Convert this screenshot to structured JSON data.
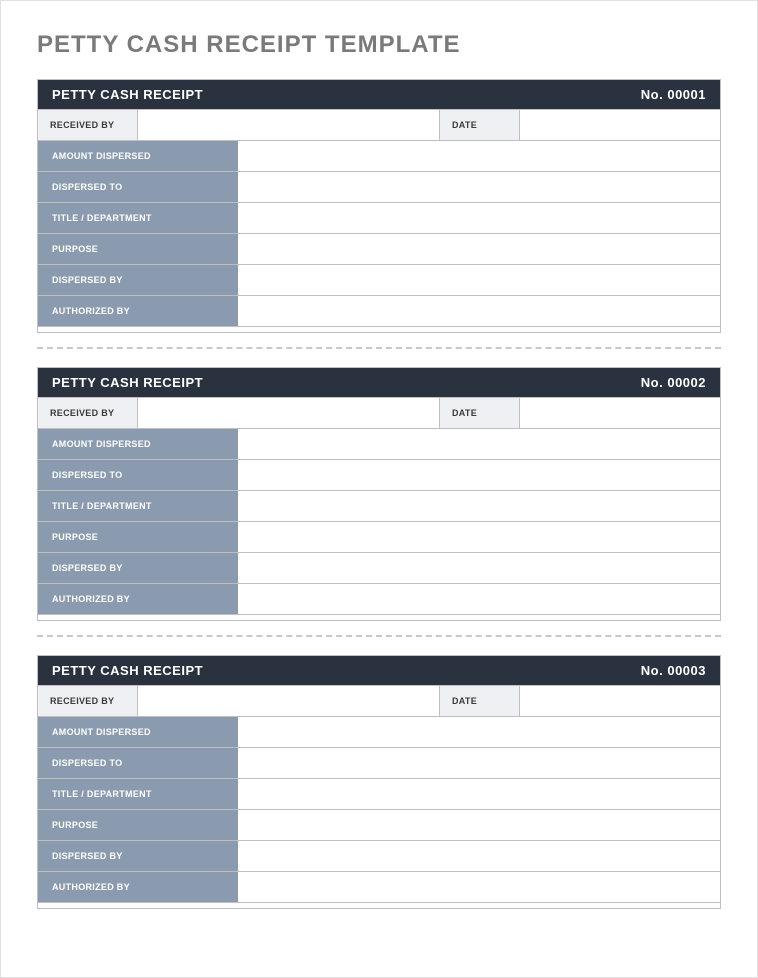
{
  "page": {
    "title": "PETTY CASH RECEIPT TEMPLATE"
  },
  "colors": {
    "header_bg": "#2a3240",
    "header_text": "#ffffff",
    "field_label_bg": "#8a9bb0",
    "field_label_text": "#ffffff",
    "light_label_bg": "#eef0f4",
    "border": "#bfbfbf",
    "page_title": "#7a7a7a",
    "separator": "#c8c8c8"
  },
  "labels": {
    "header_title": "PETTY CASH RECEIPT",
    "received_by": "RECEIVED BY",
    "date": "DATE",
    "amount_dispersed": "AMOUNT DISPERSED",
    "dispersed_to": "DISPERSED TO",
    "title_department": "TITLE / DEPARTMENT",
    "purpose": "PURPOSE",
    "dispersed_by": "DISPERSED BY",
    "authorized_by": "AUTHORIZED BY"
  },
  "receipts": [
    {
      "number": "No. 00001",
      "received_by": "",
      "date": "",
      "amount_dispersed": "",
      "dispersed_to": "",
      "title_department": "",
      "purpose": "",
      "dispersed_by": "",
      "authorized_by": ""
    },
    {
      "number": "No. 00002",
      "received_by": "",
      "date": "",
      "amount_dispersed": "",
      "dispersed_to": "",
      "title_department": "",
      "purpose": "",
      "dispersed_by": "",
      "authorized_by": ""
    },
    {
      "number": "No. 00003",
      "received_by": "",
      "date": "",
      "amount_dispersed": "",
      "dispersed_to": "",
      "title_department": "",
      "purpose": "",
      "dispersed_by": "",
      "authorized_by": ""
    }
  ]
}
